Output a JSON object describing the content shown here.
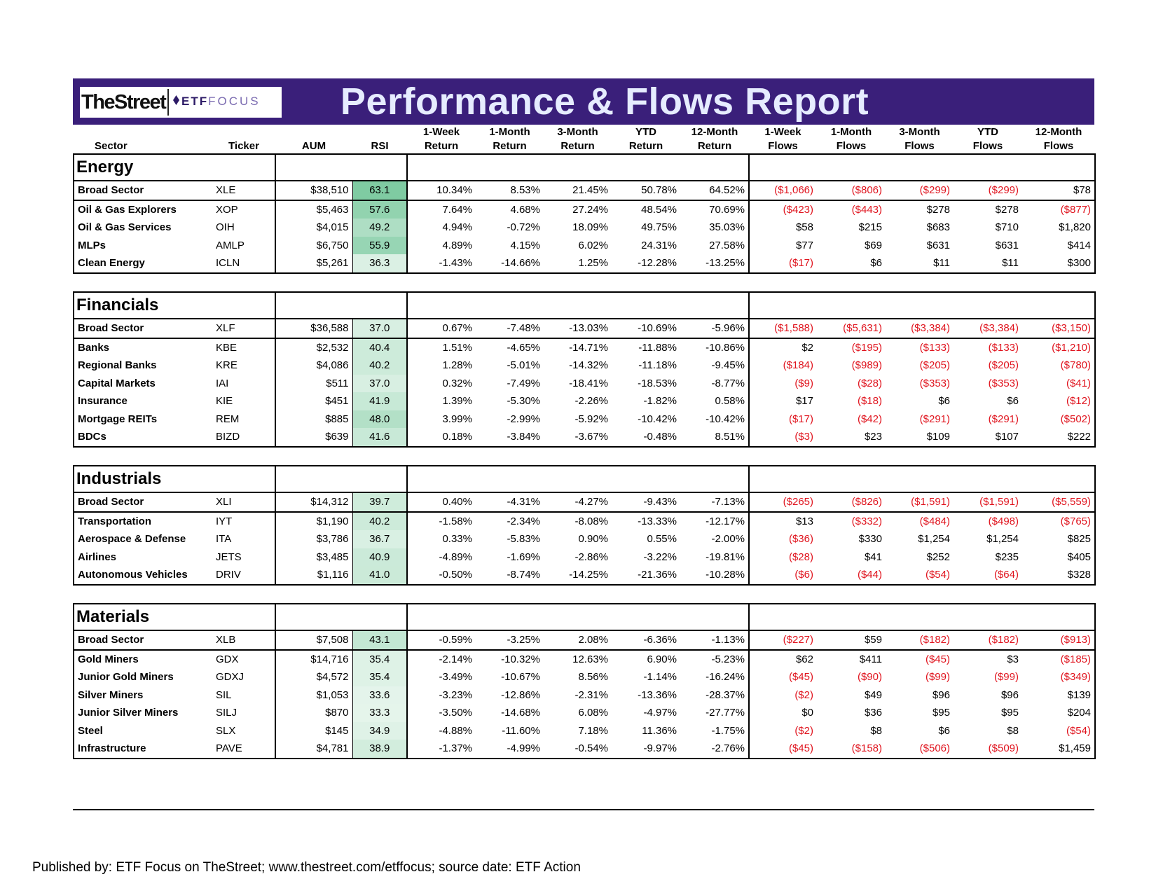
{
  "header": {
    "logo_thestreet": "TheStreet",
    "logo_etf": "ETF",
    "logo_focus": "FOCUS",
    "title": "Performance & Flows Report"
  },
  "columns": {
    "sector": "Sector",
    "ticker": "Ticker",
    "aum": "AUM",
    "rsi": "RSI",
    "ret": [
      [
        "1-Week",
        "Return"
      ],
      [
        "1-Month",
        "Return"
      ],
      [
        "3-Month",
        "Return"
      ],
      [
        "YTD",
        "Return"
      ],
      [
        "12-Month",
        "Return"
      ]
    ],
    "flows": [
      [
        "1-Week",
        "Flows"
      ],
      [
        "1-Month",
        "Flows"
      ],
      [
        "3-Month",
        "Flows"
      ],
      [
        "YTD",
        "Flows"
      ],
      [
        "12-Month",
        "Flows"
      ]
    ]
  },
  "colors": {
    "banner": "#3a1f7a",
    "negative": "#e0141e",
    "rsi_high": "#7fcba2",
    "rsi_low": "#e6f5ec"
  },
  "sections": [
    {
      "name": "Energy",
      "rows": [
        {
          "sector": "Broad Sector",
          "ticker": "XLE",
          "aum": "$38,510",
          "rsi": "63.1",
          "ret": [
            "10.34%",
            "8.53%",
            "21.45%",
            "50.78%",
            "64.52%"
          ],
          "flows": [
            "($1,066)",
            "($806)",
            "($299)",
            "($299)",
            "$78"
          ]
        },
        {
          "sector": "Oil & Gas Explorers",
          "ticker": "XOP",
          "aum": "$5,463",
          "rsi": "57.6",
          "ret": [
            "7.64%",
            "4.68%",
            "27.24%",
            "48.54%",
            "70.69%"
          ],
          "flows": [
            "($423)",
            "($443)",
            "$278",
            "$278",
            "($877)"
          ]
        },
        {
          "sector": "Oil & Gas Services",
          "ticker": "OIH",
          "aum": "$4,015",
          "rsi": "49.2",
          "ret": [
            "4.94%",
            "-0.72%",
            "18.09%",
            "49.75%",
            "35.03%"
          ],
          "flows": [
            "$58",
            "$215",
            "$683",
            "$710",
            "$1,820"
          ]
        },
        {
          "sector": "MLPs",
          "ticker": "AMLP",
          "aum": "$6,750",
          "rsi": "55.9",
          "ret": [
            "4.89%",
            "4.15%",
            "6.02%",
            "24.31%",
            "27.58%"
          ],
          "flows": [
            "$77",
            "$69",
            "$631",
            "$631",
            "$414"
          ]
        },
        {
          "sector": "Clean Energy",
          "ticker": "ICLN",
          "aum": "$5,261",
          "rsi": "36.3",
          "ret": [
            "-1.43%",
            "-14.66%",
            "1.25%",
            "-12.28%",
            "-13.25%"
          ],
          "flows": [
            "($17)",
            "$6",
            "$11",
            "$11",
            "$300"
          ]
        }
      ]
    },
    {
      "name": "Financials",
      "rows": [
        {
          "sector": "Broad Sector",
          "ticker": "XLF",
          "aum": "$36,588",
          "rsi": "37.0",
          "ret": [
            "0.67%",
            "-7.48%",
            "-13.03%",
            "-10.69%",
            "-5.96%"
          ],
          "flows": [
            "($1,588)",
            "($5,631)",
            "($3,384)",
            "($3,384)",
            "($3,150)"
          ]
        },
        {
          "sector": "Banks",
          "ticker": "KBE",
          "aum": "$2,532",
          "rsi": "40.4",
          "ret": [
            "1.51%",
            "-4.65%",
            "-14.71%",
            "-11.88%",
            "-10.86%"
          ],
          "flows": [
            "$2",
            "($195)",
            "($133)",
            "($133)",
            "($1,210)"
          ]
        },
        {
          "sector": "Regional Banks",
          "ticker": "KRE",
          "aum": "$4,086",
          "rsi": "40.2",
          "ret": [
            "1.28%",
            "-5.01%",
            "-14.32%",
            "-11.18%",
            "-9.45%"
          ],
          "flows": [
            "($184)",
            "($989)",
            "($205)",
            "($205)",
            "($780)"
          ]
        },
        {
          "sector": "Capital Markets",
          "ticker": "IAI",
          "aum": "$511",
          "rsi": "37.0",
          "ret": [
            "0.32%",
            "-7.49%",
            "-18.41%",
            "-18.53%",
            "-8.77%"
          ],
          "flows": [
            "($9)",
            "($28)",
            "($353)",
            "($353)",
            "($41)"
          ]
        },
        {
          "sector": "Insurance",
          "ticker": "KIE",
          "aum": "$451",
          "rsi": "41.9",
          "ret": [
            "1.39%",
            "-5.30%",
            "-2.26%",
            "-1.82%",
            "0.58%"
          ],
          "flows": [
            "$17",
            "($18)",
            "$6",
            "$6",
            "($12)"
          ]
        },
        {
          "sector": "Mortgage REITs",
          "ticker": "REM",
          "aum": "$885",
          "rsi": "48.0",
          "ret": [
            "3.99%",
            "-2.99%",
            "-5.92%",
            "-10.42%",
            "-10.42%"
          ],
          "flows": [
            "($17)",
            "($42)",
            "($291)",
            "($291)",
            "($502)"
          ]
        },
        {
          "sector": "BDCs",
          "ticker": "BIZD",
          "aum": "$639",
          "rsi": "41.6",
          "ret": [
            "0.18%",
            "-3.84%",
            "-3.67%",
            "-0.48%",
            "8.51%"
          ],
          "flows": [
            "($3)",
            "$23",
            "$109",
            "$107",
            "$222"
          ]
        }
      ]
    },
    {
      "name": "Industrials",
      "rows": [
        {
          "sector": "Broad Sector",
          "ticker": "XLI",
          "aum": "$14,312",
          "rsi": "39.7",
          "ret": [
            "0.40%",
            "-4.31%",
            "-4.27%",
            "-9.43%",
            "-7.13%"
          ],
          "flows": [
            "($265)",
            "($826)",
            "($1,591)",
            "($1,591)",
            "($5,559)"
          ]
        },
        {
          "sector": "Transportation",
          "ticker": "IYT",
          "aum": "$1,190",
          "rsi": "40.2",
          "ret": [
            "-1.58%",
            "-2.34%",
            "-8.08%",
            "-13.33%",
            "-12.17%"
          ],
          "flows": [
            "$13",
            "($332)",
            "($484)",
            "($498)",
            "($765)"
          ]
        },
        {
          "sector": "Aerospace & Defense",
          "ticker": "ITA",
          "aum": "$3,786",
          "rsi": "36.7",
          "ret": [
            "0.33%",
            "-5.83%",
            "0.90%",
            "0.55%",
            "-2.00%"
          ],
          "flows": [
            "($36)",
            "$330",
            "$1,254",
            "$1,254",
            "$825"
          ]
        },
        {
          "sector": "Airlines",
          "ticker": "JETS",
          "aum": "$3,485",
          "rsi": "40.9",
          "ret": [
            "-4.89%",
            "-1.69%",
            "-2.86%",
            "-3.22%",
            "-19.81%"
          ],
          "flows": [
            "($28)",
            "$41",
            "$252",
            "$235",
            "$405"
          ]
        },
        {
          "sector": "Autonomous Vehicles",
          "ticker": "DRIV",
          "aum": "$1,116",
          "rsi": "41.0",
          "ret": [
            "-0.50%",
            "-8.74%",
            "-14.25%",
            "-21.36%",
            "-10.28%"
          ],
          "flows": [
            "($6)",
            "($44)",
            "($54)",
            "($64)",
            "$328"
          ]
        }
      ]
    },
    {
      "name": "Materials",
      "rows": [
        {
          "sector": "Broad Sector",
          "ticker": "XLB",
          "aum": "$7,508",
          "rsi": "43.1",
          "ret": [
            "-0.59%",
            "-3.25%",
            "2.08%",
            "-6.36%",
            "-1.13%"
          ],
          "flows": [
            "($227)",
            "$59",
            "($182)",
            "($182)",
            "($913)"
          ]
        },
        {
          "sector": "Gold Miners",
          "ticker": "GDX",
          "aum": "$14,716",
          "rsi": "35.4",
          "ret": [
            "-2.14%",
            "-10.32%",
            "12.63%",
            "6.90%",
            "-5.23%"
          ],
          "flows": [
            "$62",
            "$411",
            "($45)",
            "$3",
            "($185)"
          ]
        },
        {
          "sector": "Junior Gold Miners",
          "ticker": "GDXJ",
          "aum": "$4,572",
          "rsi": "35.4",
          "ret": [
            "-3.49%",
            "-10.67%",
            "8.56%",
            "-1.14%",
            "-16.24%"
          ],
          "flows": [
            "($45)",
            "($90)",
            "($99)",
            "($99)",
            "($349)"
          ]
        },
        {
          "sector": "Silver Miners",
          "ticker": "SIL",
          "aum": "$1,053",
          "rsi": "33.6",
          "ret": [
            "-3.23%",
            "-12.86%",
            "-2.31%",
            "-13.36%",
            "-28.37%"
          ],
          "flows": [
            "($2)",
            "$49",
            "$96",
            "$96",
            "$139"
          ]
        },
        {
          "sector": "Junior Silver Miners",
          "ticker": "SILJ",
          "aum": "$870",
          "rsi": "33.3",
          "ret": [
            "-3.50%",
            "-14.68%",
            "6.08%",
            "-4.97%",
            "-27.77%"
          ],
          "flows": [
            "$0",
            "$36",
            "$95",
            "$95",
            "$204"
          ]
        },
        {
          "sector": "Steel",
          "ticker": "SLX",
          "aum": "$145",
          "rsi": "34.9",
          "ret": [
            "-4.88%",
            "-11.60%",
            "7.18%",
            "11.36%",
            "-1.75%"
          ],
          "flows": [
            "($2)",
            "$8",
            "$6",
            "$8",
            "($54)"
          ]
        },
        {
          "sector": "Infrastructure",
          "ticker": "PAVE",
          "aum": "$4,781",
          "rsi": "38.9",
          "ret": [
            "-1.37%",
            "-4.99%",
            "-0.54%",
            "-9.97%",
            "-2.76%"
          ],
          "flows": [
            "($45)",
            "($158)",
            "($506)",
            "($509)",
            "$1,459"
          ]
        }
      ]
    }
  ],
  "footer": "Published by: ETF Focus on TheStreet; www.thestreet.com/etffocus; source date: ETF Action"
}
